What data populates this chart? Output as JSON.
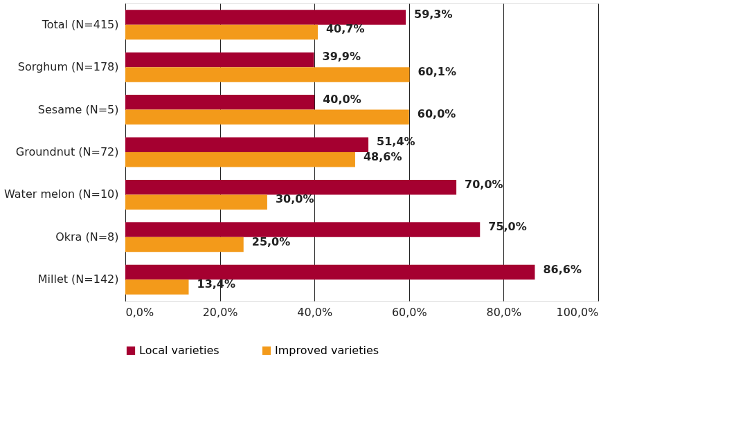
{
  "chart_data": {
    "type": "bar",
    "orientation": "horizontal",
    "categories": [
      "Total (N=415)",
      "Sorghum (N=178)",
      "Sesame (N=5)",
      "Groundnut (N=72)",
      "Water melon (N=10)",
      "Okra (N=8)",
      "Millet (N=142)"
    ],
    "series": [
      {
        "name": "Local varieties",
        "color": "#a50030",
        "values": [
          59.3,
          39.9,
          40.0,
          51.4,
          70.0,
          75.0,
          86.6
        ],
        "value_labels": [
          "59,3%",
          "39,9%",
          "40,0%",
          "51,4%",
          "70,0%",
          "75,0%",
          "86,6%"
        ]
      },
      {
        "name": "Improved varieties",
        "color": "#f39a1a",
        "values": [
          40.7,
          60.1,
          60.0,
          48.6,
          30.0,
          25.0,
          13.4
        ],
        "value_labels": [
          "40,7%",
          "60,1%",
          "60,0%",
          "48,6%",
          "30,0%",
          "25,0%",
          "13,4%"
        ]
      }
    ],
    "xlim": [
      0,
      100
    ],
    "xticks": [
      {
        "value": 0,
        "label": "0,0%"
      },
      {
        "value": 20,
        "label": "20,0%"
      },
      {
        "value": 40,
        "label": "40,0%"
      },
      {
        "value": 60,
        "label": "60,0%"
      },
      {
        "value": 80,
        "label": "80,0%"
      },
      {
        "value": 100,
        "label": "100,0%"
      }
    ],
    "grid": "x",
    "legend": "bottom"
  }
}
